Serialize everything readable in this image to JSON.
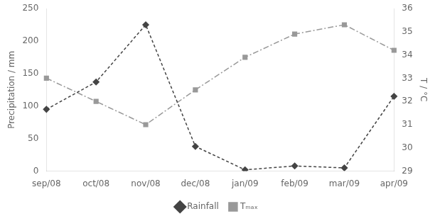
{
  "chart_data": {
    "type": "line",
    "categories": [
      "sep/08",
      "oct/08",
      "nov/08",
      "dec/08",
      "jan/09",
      "feb/09",
      "mar/09",
      "apr/09"
    ],
    "series": [
      {
        "name": "Rainfall",
        "color": "#444444",
        "values": [
          95,
          137,
          225,
          38,
          2,
          8,
          5,
          115
        ],
        "marker": "diamond",
        "line_style": "dashed"
      },
      {
        "name": "Tₘₐₓ",
        "color": "#999999",
        "values": [
          33.0,
          32.0,
          31.0,
          32.5,
          33.9,
          34.9,
          35.3,
          34.2
        ],
        "axis": "y2",
        "marker": "square",
        "line_style": "dashdot"
      }
    ],
    "ylabel": "Precipitation / mm",
    "y2label": "T / °C",
    "ylim": [
      0,
      250
    ],
    "yticks": [
      0,
      50,
      100,
      150,
      200,
      250
    ],
    "y2lim": [
      29,
      36
    ],
    "y2ticks": [
      29,
      30,
      31,
      32,
      33,
      34,
      35,
      36
    ],
    "grid": false,
    "legend": "bottom"
  }
}
